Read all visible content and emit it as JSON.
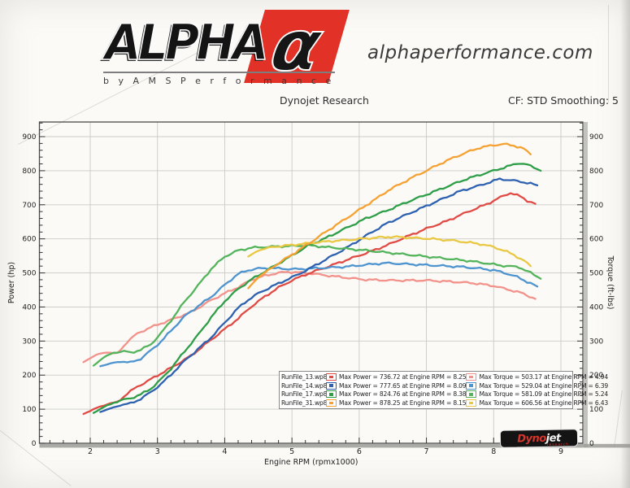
{
  "header": {
    "brand": "ALPHA",
    "alpha_glyph": "α",
    "byline": "b y   A M S   P e r f o r m a n c e",
    "accent_color": "#e23127",
    "website": "alphaperformance.com",
    "chart_title": "Dynojet Research",
    "smoothing": "CF: STD Smoothing: 5"
  },
  "watermark": {
    "brand_left": "Dyno",
    "brand_right": "jet",
    "sub": "research"
  },
  "legend": {
    "rows": [
      {
        "file": "RunFile_13.wp8",
        "power_color": "#e14b45",
        "torque_color": "#f2928a",
        "power_text": "Max Power = 736.72 at Engine RPM = 8.25",
        "torque_text": "Max Torque = 503.17 at Engine RPM = 4.94"
      },
      {
        "file": "RunFile_14.wp8",
        "power_color": "#2e62b0",
        "torque_color": "#4e94cf",
        "power_text": "Max Power = 777.65 at Engine RPM = 8.09",
        "torque_text": "Max Torque = 529.04 at Engine RPM = 6.39"
      },
      {
        "file": "RunFile_17.wp8",
        "power_color": "#2f9e48",
        "torque_color": "#54b45c",
        "power_text": "Max Power = 824.76 at Engine RPM = 8.38",
        "torque_text": "Max Torque = 581.09 at Engine RPM = 5.24"
      },
      {
        "file": "RunFile_31.wp8",
        "power_color": "#f5a233",
        "torque_color": "#e9c843",
        "power_text": "Max Power = 878.25 at Engine RPM = 8.15",
        "torque_text": "Max Torque = 606.56 at Engine RPM = 6.43"
      }
    ]
  },
  "chart_data": {
    "type": "line",
    "title": "Dynojet Research",
    "xlabel": "Engine RPM (rpmx1000)",
    "ylabel_left": "Power (hp)",
    "ylabel_right": "Torque (ft-lbs)",
    "x_ticks": [
      2,
      3,
      4,
      5,
      6,
      7,
      8,
      9
    ],
    "y_ticks": [
      0,
      100,
      200,
      300,
      400,
      500,
      600,
      700,
      800,
      900
    ],
    "xlim": [
      1.24,
      9.33
    ],
    "ylim": [
      0,
      943
    ],
    "grid": true,
    "legend_position": "bottom-center-box",
    "series": [
      {
        "name": "RunFile_13.wp8 Torque",
        "run": "RunFile_13.wp8",
        "kind": "torque",
        "color": "#f2928a",
        "max": {
          "value": 503.17,
          "rpm": 4.94
        },
        "points": [
          [
            1.9,
            238
          ],
          [
            2.0,
            250
          ],
          [
            2.1,
            260
          ],
          [
            2.25,
            268
          ],
          [
            2.4,
            262
          ],
          [
            2.55,
            298
          ],
          [
            2.7,
            322
          ],
          [
            2.85,
            336
          ],
          [
            3.0,
            348
          ],
          [
            3.2,
            362
          ],
          [
            3.5,
            385
          ],
          [
            3.8,
            420
          ],
          [
            4.0,
            440
          ],
          [
            4.2,
            458
          ],
          [
            4.4,
            480
          ],
          [
            4.6,
            492
          ],
          [
            4.8,
            500
          ],
          [
            4.94,
            503
          ],
          [
            5.2,
            500
          ],
          [
            5.5,
            493
          ],
          [
            5.8,
            486
          ],
          [
            6.1,
            480
          ],
          [
            6.5,
            478
          ],
          [
            7.0,
            478
          ],
          [
            7.4,
            474
          ],
          [
            7.7,
            470
          ],
          [
            8.0,
            462
          ],
          [
            8.2,
            452
          ],
          [
            8.4,
            442
          ],
          [
            8.62,
            424
          ]
        ]
      },
      {
        "name": "RunFile_13.wp8 Power",
        "run": "RunFile_13.wp8",
        "kind": "power",
        "color": "#e14b45",
        "max": {
          "value": 736.72,
          "rpm": 8.25
        },
        "points": [
          [
            1.9,
            86
          ],
          [
            2.0,
            95
          ],
          [
            2.1,
            104
          ],
          [
            2.25,
            115
          ],
          [
            2.4,
            120
          ],
          [
            2.55,
            146
          ],
          [
            2.7,
            166
          ],
          [
            2.85,
            182
          ],
          [
            3.0,
            199
          ],
          [
            3.2,
            221
          ],
          [
            3.5,
            257
          ],
          [
            3.8,
            304
          ],
          [
            4.0,
            335
          ],
          [
            4.2,
            366
          ],
          [
            4.4,
            402
          ],
          [
            4.6,
            431
          ],
          [
            4.8,
            457
          ],
          [
            5.0,
            478
          ],
          [
            5.2,
            495
          ],
          [
            5.5,
            516
          ],
          [
            5.8,
            537
          ],
          [
            6.1,
            558
          ],
          [
            6.4,
            580
          ],
          [
            6.7,
            606
          ],
          [
            7.0,
            630
          ],
          [
            7.3,
            652
          ],
          [
            7.6,
            678
          ],
          [
            7.9,
            702
          ],
          [
            8.1,
            722
          ],
          [
            8.25,
            735
          ],
          [
            8.4,
            724
          ],
          [
            8.5,
            712
          ],
          [
            8.62,
            703
          ]
        ]
      },
      {
        "name": "RunFile_14.wp8 Torque",
        "run": "RunFile_14.wp8",
        "kind": "torque",
        "color": "#4e94cf",
        "max": {
          "value": 529.04,
          "rpm": 6.39
        },
        "points": [
          [
            2.15,
            226
          ],
          [
            2.3,
            234
          ],
          [
            2.45,
            240
          ],
          [
            2.6,
            237
          ],
          [
            2.75,
            248
          ],
          [
            2.9,
            272
          ],
          [
            3.05,
            298
          ],
          [
            3.2,
            330
          ],
          [
            3.4,
            372
          ],
          [
            3.6,
            402
          ],
          [
            3.8,
            430
          ],
          [
            4.0,
            465
          ],
          [
            4.2,
            497
          ],
          [
            4.35,
            508
          ],
          [
            4.5,
            513
          ],
          [
            4.7,
            514
          ],
          [
            4.9,
            512
          ],
          [
            5.1,
            511
          ],
          [
            5.3,
            513
          ],
          [
            5.5,
            515
          ],
          [
            5.7,
            517
          ],
          [
            5.9,
            520
          ],
          [
            6.1,
            524
          ],
          [
            6.39,
            529
          ],
          [
            6.6,
            527
          ],
          [
            6.9,
            524
          ],
          [
            7.2,
            521
          ],
          [
            7.5,
            518
          ],
          [
            7.8,
            513
          ],
          [
            8.0,
            508
          ],
          [
            8.2,
            498
          ],
          [
            8.35,
            488
          ],
          [
            8.5,
            474
          ],
          [
            8.65,
            460
          ]
        ]
      },
      {
        "name": "RunFile_14.wp8 Power",
        "run": "RunFile_14.wp8",
        "kind": "power",
        "color": "#2e62b0",
        "max": {
          "value": 777.65,
          "rpm": 8.09
        },
        "points": [
          [
            2.15,
            92
          ],
          [
            2.3,
            102
          ],
          [
            2.45,
            112
          ],
          [
            2.6,
            117
          ],
          [
            2.75,
            130
          ],
          [
            2.9,
            150
          ],
          [
            3.05,
            173
          ],
          [
            3.2,
            201
          ],
          [
            3.4,
            241
          ],
          [
            3.6,
            276
          ],
          [
            3.8,
            311
          ],
          [
            4.0,
            354
          ],
          [
            4.2,
            397
          ],
          [
            4.35,
            421
          ],
          [
            4.5,
            440
          ],
          [
            4.7,
            460
          ],
          [
            4.9,
            478
          ],
          [
            5.1,
            496
          ],
          [
            5.3,
            517
          ],
          [
            5.5,
            539
          ],
          [
            5.7,
            561
          ],
          [
            5.9,
            584
          ],
          [
            6.1,
            609
          ],
          [
            6.39,
            643
          ],
          [
            6.6,
            662
          ],
          [
            6.9,
            688
          ],
          [
            7.2,
            714
          ],
          [
            7.5,
            740
          ],
          [
            7.8,
            757
          ],
          [
            8.0,
            770
          ],
          [
            8.09,
            776
          ],
          [
            8.25,
            772
          ],
          [
            8.4,
            768
          ],
          [
            8.55,
            762
          ],
          [
            8.65,
            757
          ]
        ]
      },
      {
        "name": "RunFile_17.wp8 Torque",
        "run": "RunFile_17.wp8",
        "kind": "torque",
        "color": "#54b45c",
        "max": {
          "value": 581.09,
          "rpm": 5.24
        },
        "points": [
          [
            2.05,
            228
          ],
          [
            2.2,
            252
          ],
          [
            2.35,
            266
          ],
          [
            2.5,
            270
          ],
          [
            2.6,
            266
          ],
          [
            2.75,
            274
          ],
          [
            2.9,
            290
          ],
          [
            3.05,
            322
          ],
          [
            3.2,
            360
          ],
          [
            3.4,
            415
          ],
          [
            3.6,
            462
          ],
          [
            3.8,
            512
          ],
          [
            4.0,
            548
          ],
          [
            4.2,
            566
          ],
          [
            4.4,
            574
          ],
          [
            4.7,
            577
          ],
          [
            5.0,
            579
          ],
          [
            5.24,
            581
          ],
          [
            5.5,
            576
          ],
          [
            5.8,
            571
          ],
          [
            6.1,
            566
          ],
          [
            6.4,
            560
          ],
          [
            6.7,
            554
          ],
          [
            7.0,
            548
          ],
          [
            7.3,
            542
          ],
          [
            7.6,
            536
          ],
          [
            7.9,
            528
          ],
          [
            8.1,
            522
          ],
          [
            8.38,
            517
          ],
          [
            8.55,
            500
          ],
          [
            8.7,
            483
          ]
        ]
      },
      {
        "name": "RunFile_17.wp8 Power",
        "run": "RunFile_17.wp8",
        "kind": "power",
        "color": "#2f9e48",
        "max": {
          "value": 824.76,
          "rpm": 8.38
        },
        "points": [
          [
            2.05,
            89
          ],
          [
            2.2,
            106
          ],
          [
            2.35,
            119
          ],
          [
            2.5,
            128
          ],
          [
            2.6,
            132
          ],
          [
            2.75,
            143
          ],
          [
            2.9,
            160
          ],
          [
            3.05,
            187
          ],
          [
            3.2,
            219
          ],
          [
            3.4,
            269
          ],
          [
            3.6,
            317
          ],
          [
            3.8,
            370
          ],
          [
            4.0,
            417
          ],
          [
            4.2,
            453
          ],
          [
            4.4,
            481
          ],
          [
            4.7,
            516
          ],
          [
            5.0,
            551
          ],
          [
            5.24,
            580
          ],
          [
            5.5,
            602
          ],
          [
            5.8,
            631
          ],
          [
            6.1,
            660
          ],
          [
            6.4,
            682
          ],
          [
            6.7,
            707
          ],
          [
            7.0,
            730
          ],
          [
            7.3,
            753
          ],
          [
            7.6,
            776
          ],
          [
            7.9,
            794
          ],
          [
            8.1,
            806
          ],
          [
            8.25,
            815
          ],
          [
            8.38,
            823
          ],
          [
            8.5,
            817
          ],
          [
            8.6,
            810
          ],
          [
            8.7,
            800
          ]
        ]
      },
      {
        "name": "RunFile_31.wp8 Torque",
        "run": "RunFile_31.wp8",
        "kind": "torque",
        "color": "#e9c843",
        "max": {
          "value": 606.56,
          "rpm": 6.43
        },
        "points": [
          [
            4.35,
            548
          ],
          [
            4.5,
            566
          ],
          [
            4.7,
            576
          ],
          [
            4.9,
            580
          ],
          [
            5.1,
            584
          ],
          [
            5.3,
            588
          ],
          [
            5.5,
            592
          ],
          [
            5.7,
            595
          ],
          [
            5.9,
            598
          ],
          [
            6.1,
            601
          ],
          [
            6.3,
            604
          ],
          [
            6.43,
            606
          ],
          [
            6.6,
            605
          ],
          [
            6.8,
            603
          ],
          [
            7.0,
            601
          ],
          [
            7.2,
            598
          ],
          [
            7.4,
            595
          ],
          [
            7.6,
            590
          ],
          [
            7.8,
            585
          ],
          [
            8.0,
            576
          ],
          [
            8.15,
            566
          ],
          [
            8.3,
            553
          ],
          [
            8.45,
            536
          ],
          [
            8.55,
            520
          ]
        ]
      },
      {
        "name": "RunFile_31.wp8 Power",
        "run": "RunFile_31.wp8",
        "kind": "power",
        "color": "#f5a233",
        "max": {
          "value": 878.25,
          "rpm": 8.15
        },
        "points": [
          [
            4.35,
            455
          ],
          [
            4.5,
            487
          ],
          [
            4.7,
            515
          ],
          [
            4.9,
            541
          ],
          [
            5.1,
            567
          ],
          [
            5.3,
            593
          ],
          [
            5.5,
            620
          ],
          [
            5.7,
            646
          ],
          [
            5.9,
            672
          ],
          [
            6.1,
            698
          ],
          [
            6.3,
            724
          ],
          [
            6.43,
            742
          ],
          [
            6.6,
            760
          ],
          [
            6.8,
            781
          ],
          [
            7.0,
            800
          ],
          [
            7.2,
            820
          ],
          [
            7.4,
            838
          ],
          [
            7.6,
            854
          ],
          [
            7.8,
            868
          ],
          [
            8.0,
            875
          ],
          [
            8.15,
            878
          ],
          [
            8.3,
            874
          ],
          [
            8.45,
            864
          ],
          [
            8.55,
            848
          ]
        ]
      }
    ]
  }
}
